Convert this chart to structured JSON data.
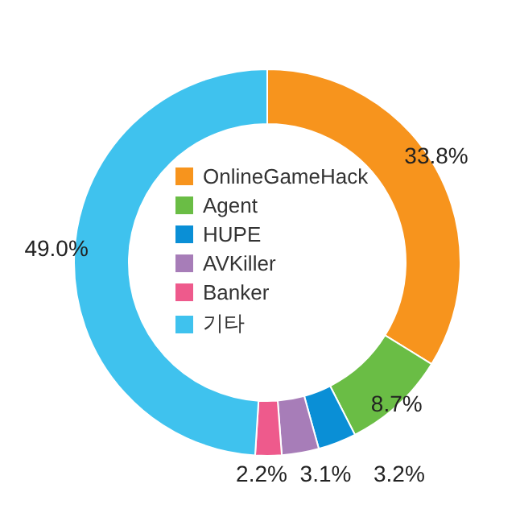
{
  "chart_data": {
    "type": "donut",
    "categories": [
      "OnlineGameHack",
      "Agent",
      "HUPE",
      "AVKiller",
      "Banker",
      "기타"
    ],
    "values": [
      33.8,
      8.7,
      3.2,
      3.1,
      2.2,
      49.0
    ],
    "colors": [
      "#f7941d",
      "#6abd45",
      "#0a8fd6",
      "#a77db8",
      "#ee5a8c",
      "#3fc2ee"
    ],
    "value_labels": [
      "33.8%",
      "8.7%",
      "3.2%",
      "3.1%",
      "2.2%",
      "49.0%"
    ],
    "legend": "center"
  }
}
